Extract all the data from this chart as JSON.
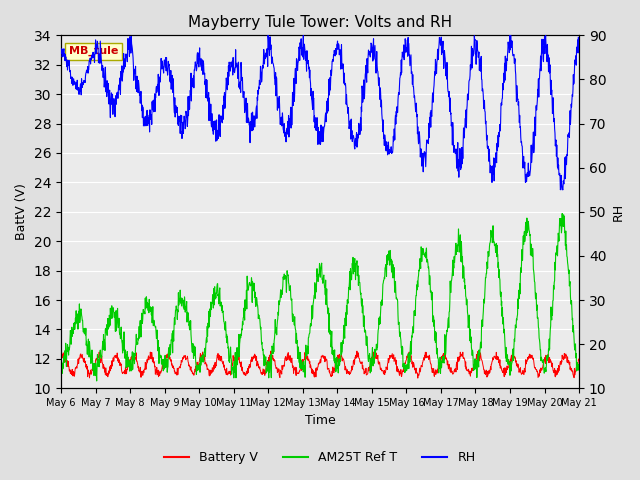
{
  "title": "Mayberry Tule Tower: Volts and RH",
  "xlabel": "Time",
  "ylabel_left": "BattV (V)",
  "ylabel_right": "RH",
  "ylim_left": [
    10,
    34
  ],
  "ylim_right": [
    10,
    90
  ],
  "yticks_left": [
    10,
    12,
    14,
    16,
    18,
    20,
    22,
    24,
    26,
    28,
    30,
    32,
    34
  ],
  "yticks_right": [
    10,
    20,
    30,
    40,
    50,
    60,
    70,
    80,
    90
  ],
  "xtick_labels": [
    "May 6",
    "May 7",
    "May 8",
    "May 9",
    "May 10",
    "May 11",
    "May 12",
    "May 13",
    "May 14",
    "May 15",
    "May 16",
    "May 17",
    "May 18",
    "May 19",
    "May 20",
    "May 21"
  ],
  "legend_labels": [
    "Battery V",
    "AM25T Ref T",
    "RH"
  ],
  "legend_colors": [
    "#ff0000",
    "#00cc00",
    "#0000ff"
  ],
  "station_label": "MB_tule",
  "bg_color": "#e0e0e0",
  "plot_bg_color": "#ebebeb",
  "line_red_color": "#ff0000",
  "line_green_color": "#00cc00",
  "line_blue_color": "#0000ff",
  "n_days": 15,
  "seed": 42
}
